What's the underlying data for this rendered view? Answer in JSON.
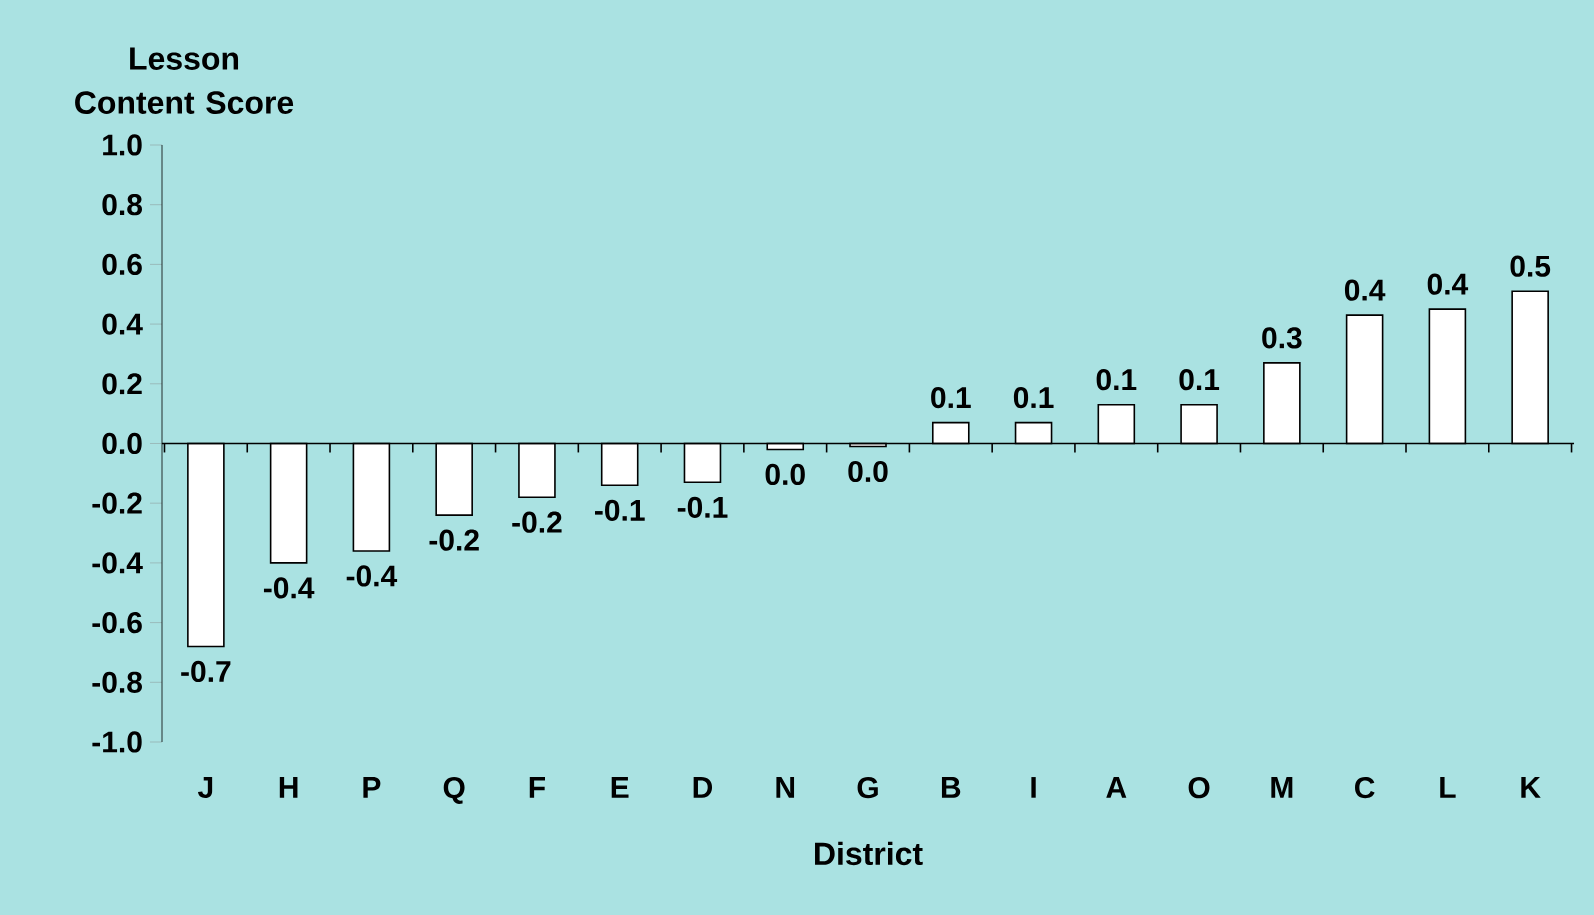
{
  "chart_data": {
    "type": "bar",
    "xlabel": "District",
    "ylabel": "Lesson Content Score",
    "categories": [
      "J",
      "H",
      "P",
      "Q",
      "F",
      "E",
      "D",
      "N",
      "G",
      "B",
      "I",
      "A",
      "O",
      "M",
      "C",
      "L",
      "K"
    ],
    "values": [
      -0.68,
      -0.4,
      -0.36,
      -0.24,
      -0.18,
      -0.14,
      -0.13,
      -0.02,
      -0.01,
      0.07,
      0.07,
      0.13,
      0.13,
      0.27,
      0.43,
      0.45,
      0.51
    ],
    "value_labels": [
      "-0.7",
      "-0.4",
      "-0.4",
      "-0.2",
      "-0.2",
      "-0.1",
      "-0.1",
      "0.0",
      "0.0",
      "0.1",
      "0.1",
      "0.1",
      "0.1",
      "0.3",
      "0.4",
      "0.4",
      "0.5"
    ],
    "color": "#ffffff",
    "ylim": [
      -1.0,
      1.0
    ],
    "yticks": [
      {
        "value": -1.0,
        "label": "-1.0"
      },
      {
        "value": -0.8,
        "label": "-0.8"
      },
      {
        "value": -0.6,
        "label": "-0.6"
      },
      {
        "value": -0.4,
        "label": "-0.4"
      },
      {
        "value": -0.2,
        "label": "-0.2"
      },
      {
        "value": 0.0,
        "label": "0.0"
      },
      {
        "value": 0.2,
        "label": "0.2"
      },
      {
        "value": 0.4,
        "label": "0.4"
      },
      {
        "value": 0.6,
        "label": "0.6"
      },
      {
        "value": 0.8,
        "label": "0.8"
      },
      {
        "value": 1.0,
        "label": "1.0"
      }
    ]
  }
}
